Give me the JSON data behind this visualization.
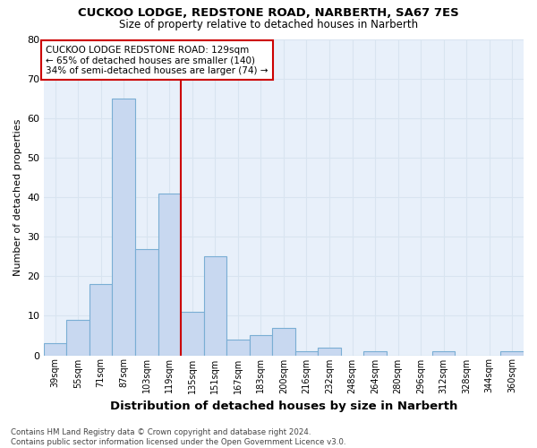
{
  "title1": "CUCKOO LODGE, REDSTONE ROAD, NARBERTH, SA67 7ES",
  "title2": "Size of property relative to detached houses in Narberth",
  "xlabel": "Distribution of detached houses by size in Narberth",
  "ylabel": "Number of detached properties",
  "categories": [
    "39sqm",
    "55sqm",
    "71sqm",
    "87sqm",
    "103sqm",
    "119sqm",
    "135sqm",
    "151sqm",
    "167sqm",
    "183sqm",
    "200sqm",
    "216sqm",
    "232sqm",
    "248sqm",
    "264sqm",
    "280sqm",
    "296sqm",
    "312sqm",
    "328sqm",
    "344sqm",
    "360sqm"
  ],
  "values": [
    3,
    9,
    18,
    65,
    27,
    41,
    11,
    25,
    4,
    5,
    7,
    1,
    2,
    0,
    1,
    0,
    0,
    1,
    0,
    0,
    1
  ],
  "bar_color": "#c8d8f0",
  "bar_edge_color": "#7aaed4",
  "vline_color": "#cc0000",
  "vline_x": 5.5,
  "annotation_text": "CUCKOO LODGE REDSTONE ROAD: 129sqm\n← 65% of detached houses are smaller (140)\n34% of semi-detached houses are larger (74) →",
  "annotation_box_facecolor": "#ffffff",
  "annotation_box_edgecolor": "#cc0000",
  "ylim": [
    0,
    80
  ],
  "yticks": [
    0,
    10,
    20,
    30,
    40,
    50,
    60,
    70,
    80
  ],
  "grid_color": "#d8e4f0",
  "fig_facecolor": "#ffffff",
  "ax_facecolor": "#e8f0fa",
  "footer": "Contains HM Land Registry data © Crown copyright and database right 2024.\nContains public sector information licensed under the Open Government Licence v3.0."
}
